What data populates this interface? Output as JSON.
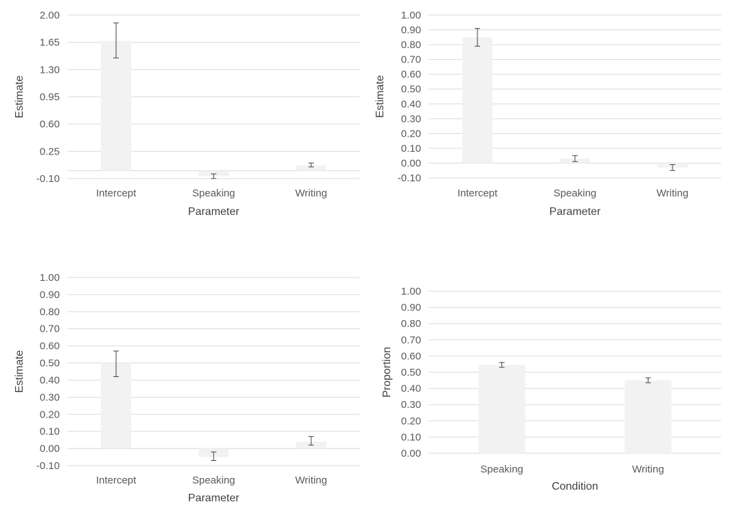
{
  "chart_data": [
    {
      "type": "bar",
      "categories": [
        "Intercept",
        "Speaking",
        "Writing"
      ],
      "values": [
        1.67,
        -0.07,
        0.07
      ],
      "error_low": [
        1.45,
        -0.1,
        0.05
      ],
      "error_high": [
        1.9,
        -0.04,
        0.1
      ],
      "ylim": [
        -0.1,
        2.0
      ],
      "yticks": [
        "2.00",
        "1.65",
        "1.30",
        "0.95",
        "0.60",
        "0.25",
        "-0.10"
      ],
      "ytick_values": [
        2.0,
        1.65,
        1.3,
        0.95,
        0.6,
        0.25,
        -0.1
      ],
      "xlabel": "Parameter",
      "ylabel": "Estimate",
      "grid": true,
      "bar_color": "#f2f2f2"
    },
    {
      "type": "bar",
      "categories": [
        "Intercept",
        "Speaking",
        "Writing"
      ],
      "values": [
        0.85,
        0.03,
        -0.03
      ],
      "error_low": [
        0.79,
        0.01,
        -0.05
      ],
      "error_high": [
        0.91,
        0.05,
        -0.01
      ],
      "ylim": [
        -0.1,
        1.0
      ],
      "yticks": [
        "1.00",
        "0.90",
        "0.80",
        "0.70",
        "0.60",
        "0.50",
        "0.40",
        "0.30",
        "0.20",
        "0.10",
        "0.00",
        "-0.10"
      ],
      "ytick_values": [
        1.0,
        0.9,
        0.8,
        0.7,
        0.6,
        0.5,
        0.4,
        0.3,
        0.2,
        0.1,
        0.0,
        -0.1
      ],
      "xlabel": "Parameter",
      "ylabel": "Estimate",
      "grid": true,
      "bar_color": "#f2f2f2"
    },
    {
      "type": "bar",
      "categories": [
        "Intercept",
        "Speaking",
        "Writing"
      ],
      "values": [
        0.5,
        -0.05,
        0.04
      ],
      "error_low": [
        0.42,
        -0.07,
        0.02
      ],
      "error_high": [
        0.57,
        -0.02,
        0.07
      ],
      "ylim": [
        -0.1,
        1.0
      ],
      "yticks": [
        "1.00",
        "0.90",
        "0.80",
        "0.70",
        "0.60",
        "0.50",
        "0.40",
        "0.30",
        "0.20",
        "0.10",
        "0.00",
        "-0.10"
      ],
      "ytick_values": [
        1.0,
        0.9,
        0.8,
        0.7,
        0.6,
        0.5,
        0.4,
        0.3,
        0.2,
        0.1,
        0.0,
        -0.1
      ],
      "xlabel": "Parameter",
      "ylabel": "Estimate",
      "grid": true,
      "bar_color": "#f2f2f2"
    },
    {
      "type": "bar",
      "categories": [
        "Speaking",
        "Writing"
      ],
      "values": [
        0.545,
        0.45
      ],
      "error_low": [
        0.53,
        0.435
      ],
      "error_high": [
        0.56,
        0.465
      ],
      "ylim": [
        0.0,
        1.0
      ],
      "yticks": [
        "1.00",
        "0.90",
        "0.80",
        "0.70",
        "0.60",
        "0.50",
        "0.40",
        "0.30",
        "0.20",
        "0.10",
        "0.00"
      ],
      "ytick_values": [
        1.0,
        0.9,
        0.8,
        0.7,
        0.6,
        0.5,
        0.4,
        0.3,
        0.2,
        0.1,
        0.0
      ],
      "xlabel": "Condition",
      "ylabel": "Proportion",
      "grid": true,
      "bar_color": "#f2f2f2"
    }
  ]
}
